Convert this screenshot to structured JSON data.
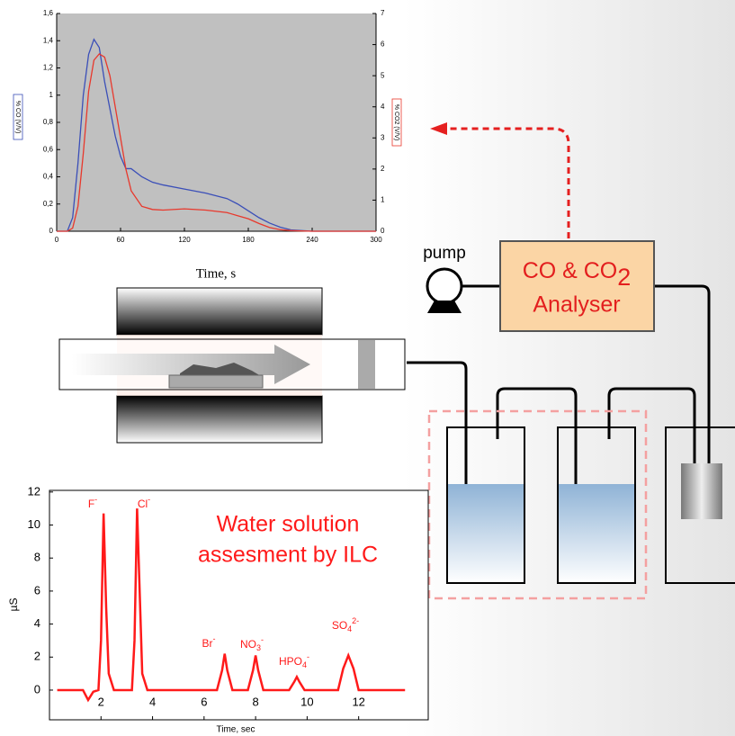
{
  "chart_data": [
    {
      "type": "line",
      "ylabel": "% CO (V/V)",
      "y2label": "% CO2 (V/V)",
      "xlabel": "Time, s",
      "x": [
        0,
        10,
        15,
        20,
        25,
        30,
        35,
        40,
        45,
        50,
        55,
        60,
        65,
        70,
        80,
        90,
        100,
        120,
        140,
        160,
        170,
        180,
        190,
        200,
        210,
        220,
        240,
        300
      ],
      "series": [
        {
          "color": "#3b4fb8",
          "values": [
            0,
            0,
            0.1,
            0.5,
            1.0,
            1.3,
            1.41,
            1.35,
            1.1,
            0.9,
            0.7,
            0.55,
            0.46,
            0.46,
            0.4,
            0.36,
            0.34,
            0.31,
            0.28,
            0.24,
            0.2,
            0.15,
            0.1,
            0.06,
            0.03,
            0.01,
            0,
            0
          ]
        },
        {
          "color": "#e8382c",
          "axis": "y2",
          "values": [
            0,
            0,
            0.1,
            0.8,
            2.5,
            4.5,
            5.5,
            5.7,
            5.6,
            5.0,
            4.0,
            3.0,
            2.0,
            1.3,
            0.8,
            0.7,
            0.68,
            0.72,
            0.68,
            0.6,
            0.5,
            0.4,
            0.25,
            0.12,
            0.05,
            0.02,
            0,
            0
          ]
        }
      ],
      "xlim": [
        0,
        300
      ],
      "xticks": [
        0,
        60,
        120,
        180,
        240,
        300
      ],
      "ylim": [
        0,
        1.6
      ],
      "yticks": [
        0,
        {
          "value": 0.2,
          "label": "0,2"
        },
        {
          "value": 0.4,
          "label": "0,4"
        },
        {
          "value": 0.6,
          "label": "0,6"
        },
        {
          "value": 0.8,
          "label": "0,8"
        },
        1,
        {
          "value": 1.2,
          "label": "1,2"
        },
        {
          "value": 1.4,
          "label": "1,4"
        },
        {
          "value": 1.6,
          "label": "1,6"
        }
      ],
      "y2lim": [
        0,
        7
      ],
      "y2ticks": [
        0,
        1,
        2,
        3,
        4,
        5,
        6,
        7
      ],
      "background": "#c0c0c0"
    },
    {
      "type": "line",
      "title": [
        "Water solution",
        "assesment by ILC"
      ],
      "ylabel": "µS",
      "xlabel": "Time, sec",
      "x": [
        0.3,
        1.3,
        1.5,
        1.7,
        1.9,
        2.0,
        2.1,
        2.2,
        2.3,
        2.5,
        3.2,
        3.3,
        3.4,
        3.5,
        3.6,
        3.8,
        6.5,
        6.7,
        6.8,
        6.9,
        7.1,
        7.7,
        7.9,
        8.0,
        8.1,
        8.3,
        9.3,
        9.5,
        9.6,
        9.7,
        9.9,
        11.2,
        11.4,
        11.6,
        11.8,
        12.0,
        13.8
      ],
      "series": [
        {
          "color": "#ff1a1a",
          "values": [
            0,
            0,
            -0.6,
            -0.1,
            0,
            3,
            10.7,
            5,
            1,
            0,
            0,
            3,
            11,
            6,
            1,
            0,
            0,
            1.2,
            2.2,
            1.2,
            0,
            0,
            1.2,
            2.1,
            1.2,
            0,
            0,
            0.5,
            0.8,
            0.5,
            0,
            0,
            1.3,
            2.1,
            1.3,
            0,
            0
          ]
        }
      ],
      "xlim": [
        0,
        14.7
      ],
      "xticks": [
        2,
        4,
        6,
        8,
        10,
        12
      ],
      "ylim": [
        -1.8,
        12.1
      ],
      "yticks": [
        0,
        2,
        4,
        6,
        8,
        10,
        12
      ],
      "peak_labels": [
        {
          "text": "F",
          "sup": "-"
        },
        {
          "text": "Cl",
          "sup": "-"
        },
        {
          "text": "Br",
          "sup": "-"
        },
        {
          "text": "NO",
          "sub": "3",
          "sup": "-"
        },
        {
          "text": "HPO",
          "sub": "4",
          "sup": "-"
        },
        {
          "text": "SO",
          "sub": "4",
          "sup": "2-"
        }
      ]
    }
  ],
  "diagram": {
    "pump": "pump",
    "analyser": {
      "line1": "CO & CO",
      "sub": "2",
      "line2": "Analyser"
    }
  }
}
